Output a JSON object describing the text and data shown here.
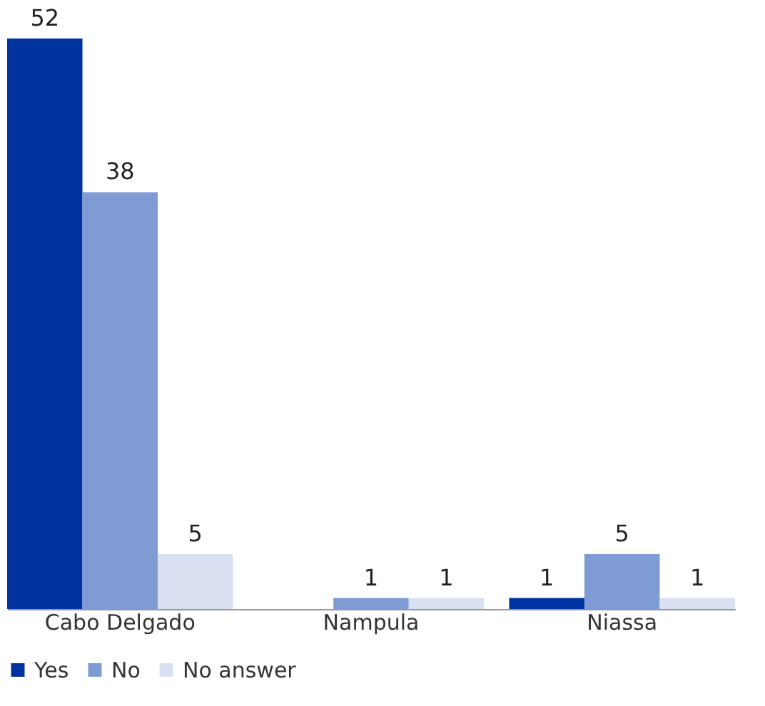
{
  "chart_data": {
    "type": "bar",
    "categories": [
      "Cabo Delgado",
      "Nampula",
      "Niassa"
    ],
    "series": [
      {
        "name": "Yes",
        "color": "#0033a0",
        "values": [
          52,
          null,
          1
        ]
      },
      {
        "name": "No",
        "color": "#7f9bd3",
        "values": [
          38,
          1,
          5
        ]
      },
      {
        "name": "No answer",
        "color": "#d9e0f1",
        "values": [
          5,
          1,
          1
        ]
      }
    ],
    "data_labels": true,
    "legend": "bottom",
    "grid": false
  }
}
